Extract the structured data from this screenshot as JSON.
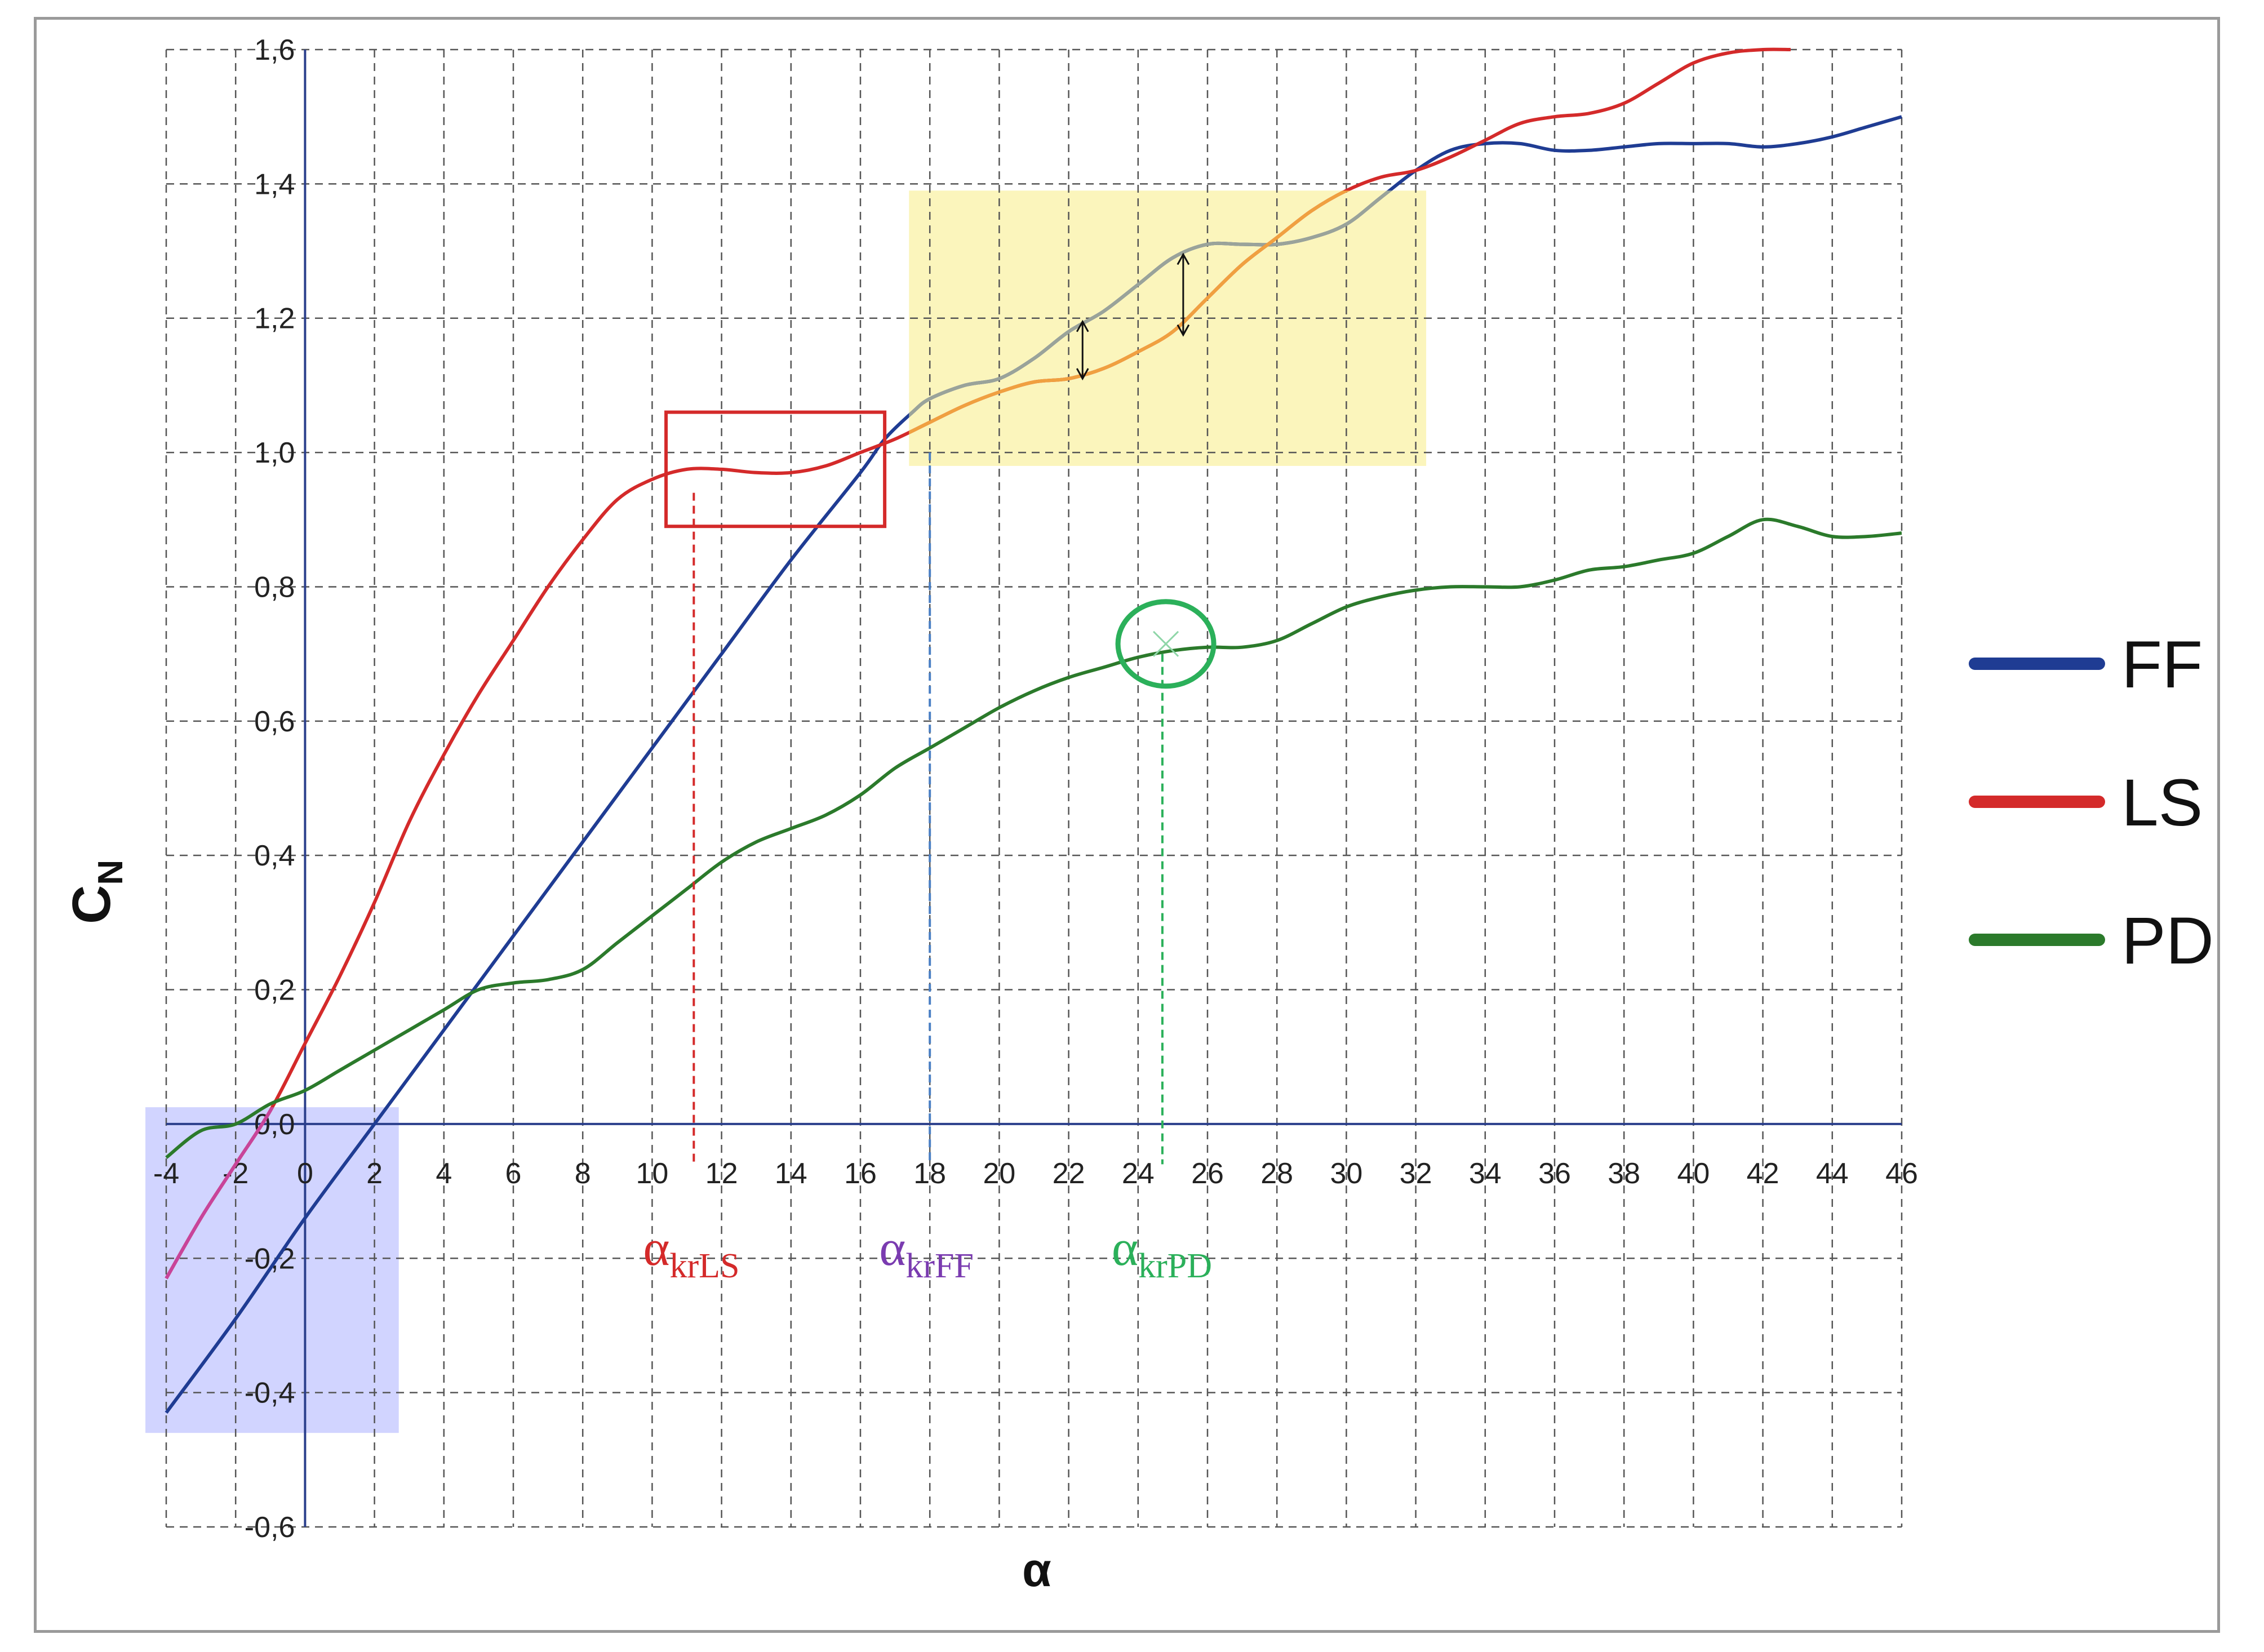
{
  "chart_data": {
    "type": "line",
    "xlabel": "α",
    "ylabel_main": "C",
    "ylabel_sub": "N",
    "xlim": [
      -4,
      46
    ],
    "ylim": [
      -0.6,
      1.6
    ],
    "grid": true,
    "legend_position": "right",
    "x_ticks": [
      "-4",
      "-2",
      "0",
      "2",
      "4",
      "6",
      "8",
      "10",
      "12",
      "14",
      "16",
      "18",
      "20",
      "22",
      "24",
      "26",
      "28",
      "30",
      "32",
      "34",
      "36",
      "38",
      "40",
      "42",
      "44",
      "46"
    ],
    "y_ticks": [
      {
        "v": 1.6,
        "label": "1,6"
      },
      {
        "v": 1.4,
        "label": "1,4"
      },
      {
        "v": 1.2,
        "label": "1,2"
      },
      {
        "v": 1.0,
        "label": "1,0"
      },
      {
        "v": 0.8,
        "label": "0,8"
      },
      {
        "v": 0.6,
        "label": "0,6"
      },
      {
        "v": 0.4,
        "label": "0,4"
      },
      {
        "v": 0.2,
        "label": "0,2"
      },
      {
        "v": 0.0,
        "label": "0,0"
      },
      {
        "v": -0.2,
        "label": "-0,2"
      },
      {
        "v": -0.4,
        "label": "-0,4"
      },
      {
        "v": -0.6,
        "label": "-0,6"
      }
    ],
    "series": [
      {
        "name": "FF",
        "color": "#1f3c93",
        "x": [
          -4,
          -2,
          0,
          2,
          4,
          6,
          8,
          10,
          12,
          14,
          16,
          16.7,
          17.5,
          18,
          19,
          20,
          21,
          22,
          23,
          24,
          25,
          26,
          27,
          28,
          29,
          30,
          31,
          32,
          33,
          34,
          35,
          36,
          37,
          38,
          39,
          40,
          41,
          42,
          43,
          44,
          45,
          46
        ],
        "y": [
          -0.43,
          -0.29,
          -0.14,
          0.0,
          0.14,
          0.28,
          0.42,
          0.56,
          0.7,
          0.84,
          0.97,
          1.02,
          1.06,
          1.08,
          1.1,
          1.11,
          1.14,
          1.18,
          1.21,
          1.25,
          1.29,
          1.31,
          1.31,
          1.31,
          1.32,
          1.34,
          1.38,
          1.42,
          1.45,
          1.46,
          1.46,
          1.45,
          1.45,
          1.455,
          1.46,
          1.46,
          1.46,
          1.455,
          1.46,
          1.47,
          1.485,
          1.5
        ]
      },
      {
        "name": "LS",
        "color": "#d42a2a",
        "x": [
          -4,
          -3,
          -2,
          -1,
          0,
          1,
          2,
          3,
          4,
          5,
          6,
          7,
          8,
          9,
          10,
          11,
          12,
          13,
          14,
          15,
          16,
          17,
          18,
          19,
          20,
          21,
          22,
          23,
          24,
          25,
          26,
          27,
          28,
          29,
          30,
          31,
          32,
          33,
          34,
          35,
          36,
          37,
          38,
          39,
          40,
          41,
          42,
          42.8
        ],
        "y": [
          -0.23,
          -0.14,
          -0.06,
          0.02,
          0.12,
          0.22,
          0.33,
          0.45,
          0.55,
          0.64,
          0.72,
          0.8,
          0.87,
          0.93,
          0.96,
          0.975,
          0.975,
          0.97,
          0.97,
          0.98,
          1.0,
          1.02,
          1.045,
          1.07,
          1.09,
          1.105,
          1.11,
          1.125,
          1.15,
          1.18,
          1.23,
          1.28,
          1.32,
          1.36,
          1.39,
          1.41,
          1.42,
          1.44,
          1.465,
          1.49,
          1.5,
          1.505,
          1.52,
          1.55,
          1.58,
          1.595,
          1.6,
          1.6
        ]
      },
      {
        "name": "PD",
        "color": "#2b7a2b",
        "x": [
          -4,
          -3,
          -2,
          -1,
          0,
          1,
          2,
          3,
          4,
          5,
          6,
          7,
          8,
          9,
          10,
          11,
          12,
          13,
          14,
          15,
          16,
          17,
          18,
          19,
          20,
          21,
          22,
          23,
          24,
          25,
          26,
          27,
          28,
          29,
          30,
          31,
          32,
          33,
          34,
          35,
          36,
          37,
          38,
          39,
          40,
          41,
          42,
          43,
          44,
          45,
          46
        ],
        "y": [
          -0.05,
          -0.01,
          0.0,
          0.03,
          0.05,
          0.08,
          0.11,
          0.14,
          0.17,
          0.2,
          0.21,
          0.215,
          0.23,
          0.27,
          0.31,
          0.35,
          0.39,
          0.42,
          0.44,
          0.46,
          0.49,
          0.53,
          0.56,
          0.59,
          0.62,
          0.645,
          0.665,
          0.68,
          0.695,
          0.705,
          0.71,
          0.71,
          0.72,
          0.745,
          0.77,
          0.785,
          0.795,
          0.8,
          0.8,
          0.8,
          0.81,
          0.825,
          0.83,
          0.84,
          0.85,
          0.875,
          0.9,
          0.89,
          0.875,
          0.875,
          0.88
        ]
      }
    ],
    "annotations": {
      "critical_angles": [
        {
          "label_main": "α",
          "label_sub": "krLS",
          "x": 11.2,
          "color": "#d42a2a",
          "label_color": "#d42a2a"
        },
        {
          "label_main": "α",
          "label_sub": "krFF",
          "x": 18.0,
          "color": "#4a7fc4",
          "label_color": "#7a3bb0"
        },
        {
          "label_main": "α",
          "label_sub": "krPD",
          "x": 24.7,
          "color": "#2bb05a",
          "label_color": "#2bb05a"
        }
      ]
    }
  }
}
